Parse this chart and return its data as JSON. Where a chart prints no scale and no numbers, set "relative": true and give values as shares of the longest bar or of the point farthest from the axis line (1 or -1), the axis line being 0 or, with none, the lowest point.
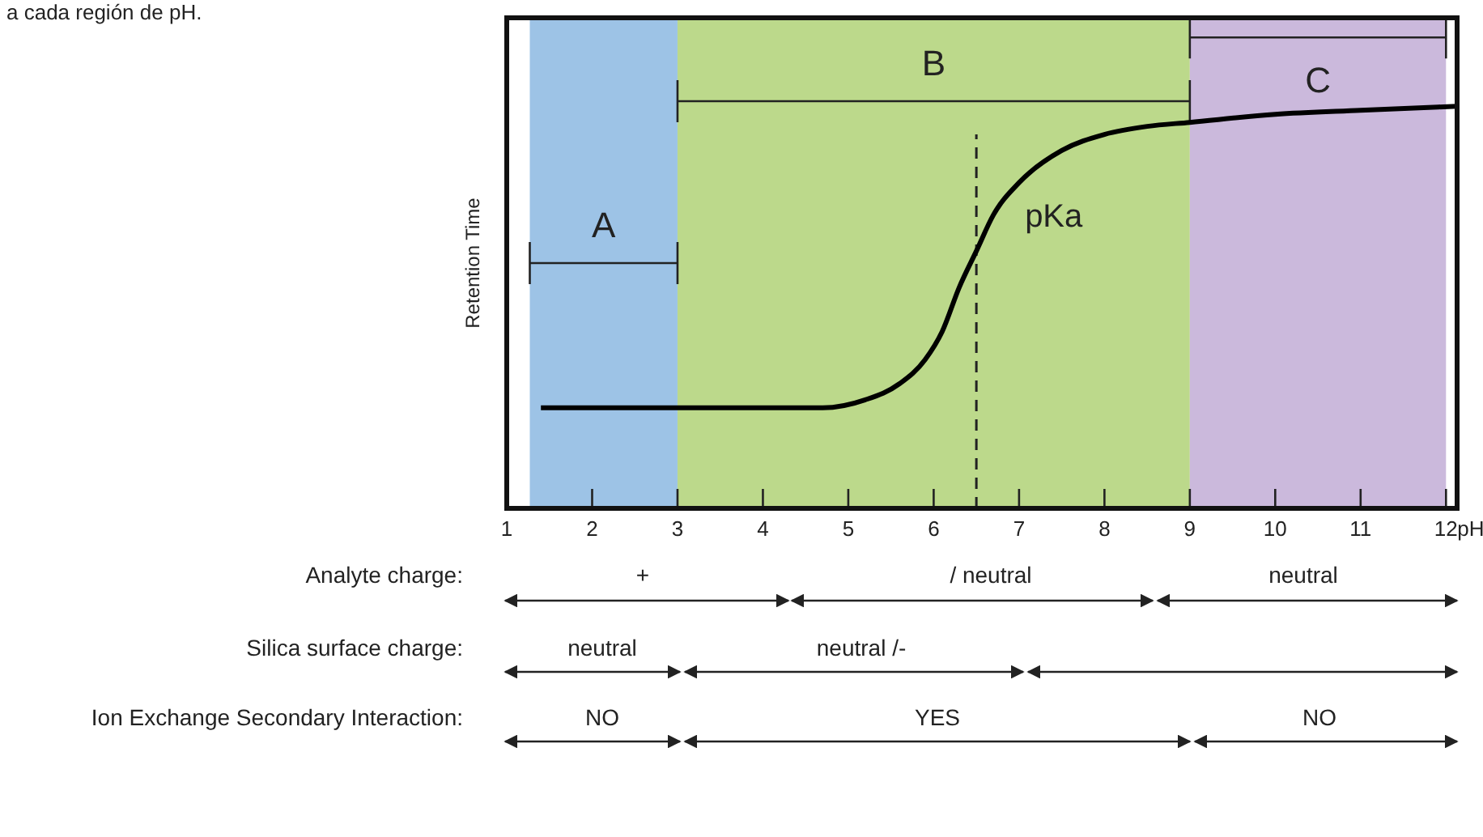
{
  "chart_data": {
    "type": "line",
    "relative": true,
    "xlim": [
      1,
      12.13
    ],
    "xticks": [
      1,
      2,
      3,
      4,
      5,
      6,
      7,
      8,
      9,
      10,
      11,
      12
    ],
    "xlabel": "pH",
    "ylabel": "Retention Time",
    "tick_labels": "x",
    "series": [
      {
        "color": "#000000",
        "x": [
          1.4,
          4.7,
          5.2,
          5.6,
          5.9,
          6.1,
          6.3,
          6.5,
          6.7,
          7,
          7.5,
          8,
          8.5,
          9,
          10,
          11,
          12.13
        ],
        "values": [
          0.25,
          0.25,
          0.27,
          0.31,
          0.37,
          0.44,
          0.55,
          0.64,
          0.73,
          0.81,
          0.89,
          0.93,
          0.95,
          0.96,
          0.98,
          0.99,
          1
        ]
      }
    ],
    "bands": [
      {
        "axis": "x",
        "from": 1.27,
        "to": 3,
        "label": "A",
        "color": "#9dc3e6"
      },
      {
        "axis": "x",
        "from": 3,
        "to": 9,
        "label": "B",
        "color": "#bcd98b"
      },
      {
        "axis": "x",
        "from": 9,
        "to": 12,
        "label": "C",
        "color": "#cbb9dc"
      }
    ],
    "ref_lines": [
      {
        "axis": "x",
        "value": 6.5,
        "label": "pKa",
        "line_style": "dashed"
      }
    ],
    "annotations": [
      "a cada región de pH.",
      "Analyte charge:",
      "+",
      "/ neutral",
      "neutral",
      "Silica surface charge:",
      "neutral",
      "neutral /-",
      "Ion Exchange Secondary Interaction:",
      "NO",
      "YES",
      "NO"
    ]
  }
}
